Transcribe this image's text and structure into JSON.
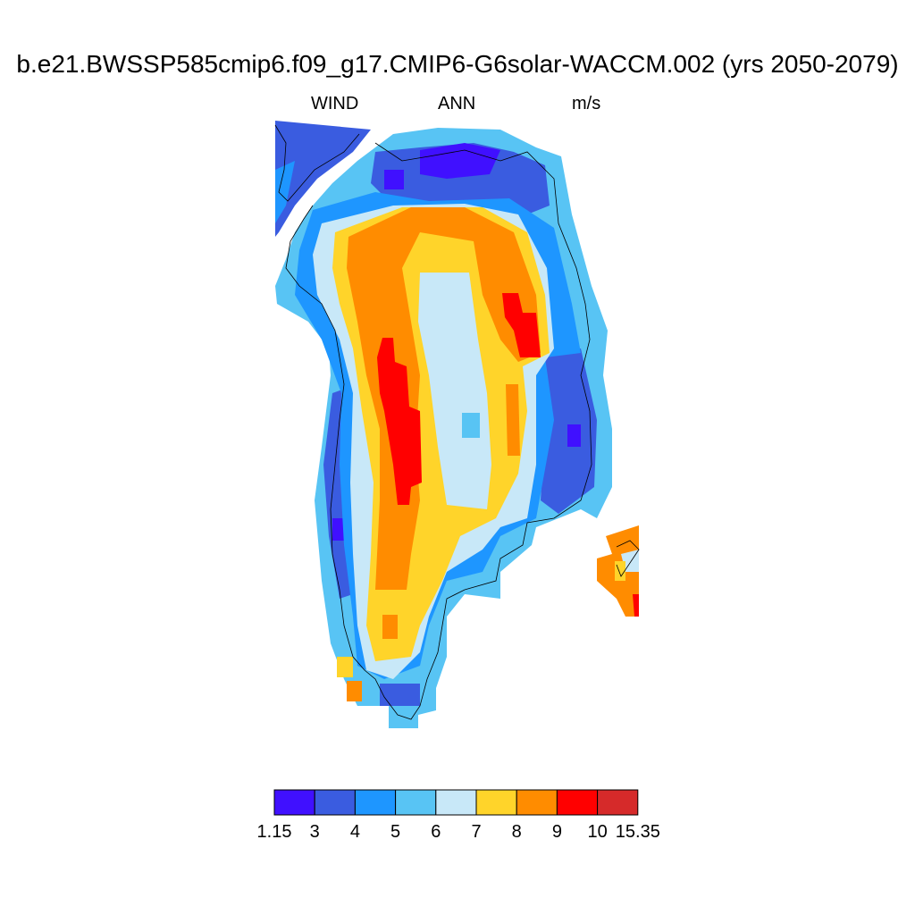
{
  "header": {
    "title": "b.e21.BWSSP585cmip6.f09_g17.CMIP6-G6solar-WACCM.002 (yrs 2050-2079)",
    "left_label": "WIND",
    "center_label": "ANN",
    "right_label": "m/s"
  },
  "colorbar": {
    "colors": [
      "#4010ff",
      "#3a5ce0",
      "#1e96ff",
      "#58c4f4",
      "#c8e8f8",
      "#ffd42a",
      "#ff8c00",
      "#ff0000",
      "#d62a2a"
    ],
    "labels": [
      "1.15",
      "3",
      "4",
      "5",
      "6",
      "7",
      "8",
      "9",
      "10",
      "15.35"
    ]
  },
  "map": {
    "region": "Greenland",
    "variable": "WIND",
    "units": "m/s"
  }
}
